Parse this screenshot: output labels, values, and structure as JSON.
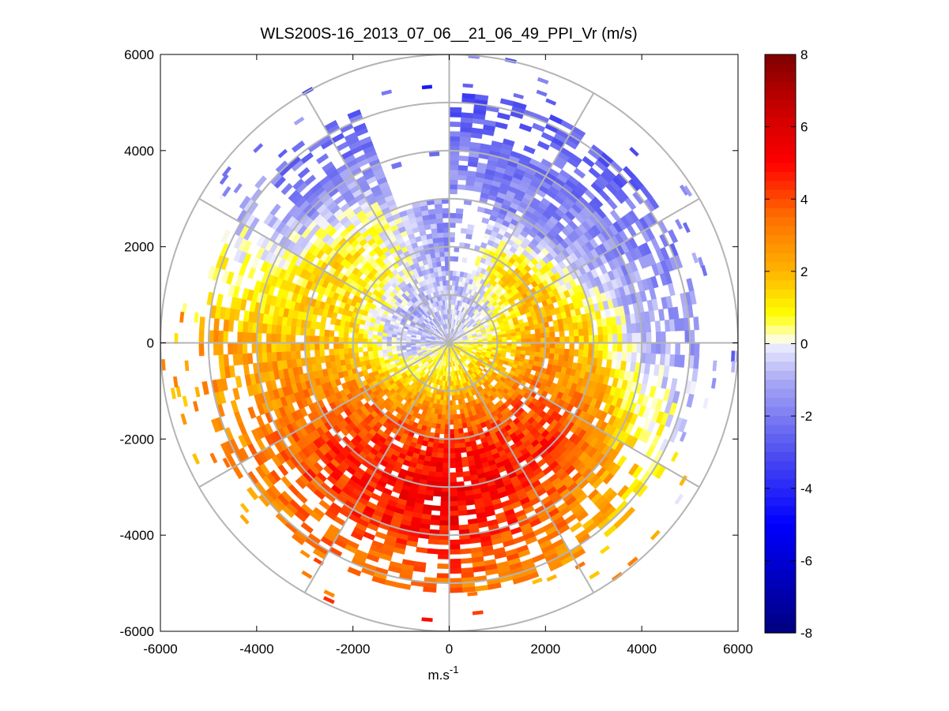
{
  "chart_data": {
    "type": "heatmap",
    "subtype": "polar-ppi",
    "title": "WLS200S-16_2013_07_06__21_06_49_PPI_Vr (m/s)",
    "xlabel": "m.s",
    "xlabel_superscript": "-1",
    "ylabel": "",
    "xlim": [
      -6000,
      6000
    ],
    "ylim": [
      -6000,
      6000
    ],
    "xticks": [
      -6000,
      -4000,
      -2000,
      0,
      2000,
      4000,
      6000
    ],
    "yticks": [
      6000,
      4000,
      2000,
      0,
      -2000,
      -4000,
      -6000
    ],
    "range_rings": [
      1000,
      2000,
      3000,
      4000,
      5000,
      6000
    ],
    "spoke_angles_deg": [
      0,
      30,
      60,
      90,
      120,
      150,
      180,
      210,
      240,
      270,
      300,
      330
    ],
    "grid": true,
    "colorbar": {
      "label": "m/s",
      "min": -8,
      "max": 8,
      "ticks": [
        8,
        6,
        4,
        2,
        0,
        -2,
        -4,
        -6,
        -8
      ],
      "colormap": [
        "#00007f",
        "#0000ff",
        "#ffffff",
        "#ffff00",
        "#ff8000",
        "#ff0000",
        "#7f0000"
      ]
    },
    "velocity_field": {
      "units": "m/s",
      "rows": [
        {
          "range_m": 500,
          "azimuth_deg": [
            0,
            45,
            90,
            135,
            180,
            225,
            270,
            315
          ],
          "vr": [
            -0.5,
            -0.3,
            0.5,
            1.0,
            1.0,
            0.5,
            -0.5,
            -0.6
          ]
        },
        {
          "range_m": 1000,
          "azimuth_deg": [
            0,
            45,
            90,
            135,
            180,
            225,
            270,
            315
          ],
          "vr": [
            -0.8,
            -0.4,
            1.2,
            2.0,
            1.8,
            1.2,
            -0.8,
            -1.0
          ]
        },
        {
          "range_m": 2000,
          "azimuth_deg": [
            0,
            45,
            90,
            135,
            180,
            225,
            270,
            315
          ],
          "vr": [
            -1.5,
            2.0,
            2.5,
            4.0,
            4.5,
            3.5,
            1.5,
            0.8
          ]
        },
        {
          "range_m": 3000,
          "azimuth_deg": [
            0,
            45,
            90,
            135,
            180,
            225,
            270,
            315
          ],
          "vr": [
            -1.8,
            -1.5,
            1.5,
            4.5,
            5.5,
            4.5,
            2.0,
            1.0
          ]
        },
        {
          "range_m": 4000,
          "azimuth_deg": [
            0,
            45,
            90,
            135,
            180,
            225,
            270,
            315
          ],
          "vr": [
            -2.0,
            -2.0,
            -0.8,
            3.0,
            5.0,
            4.0,
            2.0,
            -1.5
          ]
        },
        {
          "range_m": 5000,
          "azimuth_deg": [
            0,
            45,
            90,
            135,
            180,
            225,
            270,
            315
          ],
          "vr": [
            -3.0,
            -2.5,
            -1.5,
            2.0,
            3.5,
            3.0,
            2.5,
            -2.0
          ]
        }
      ]
    }
  }
}
